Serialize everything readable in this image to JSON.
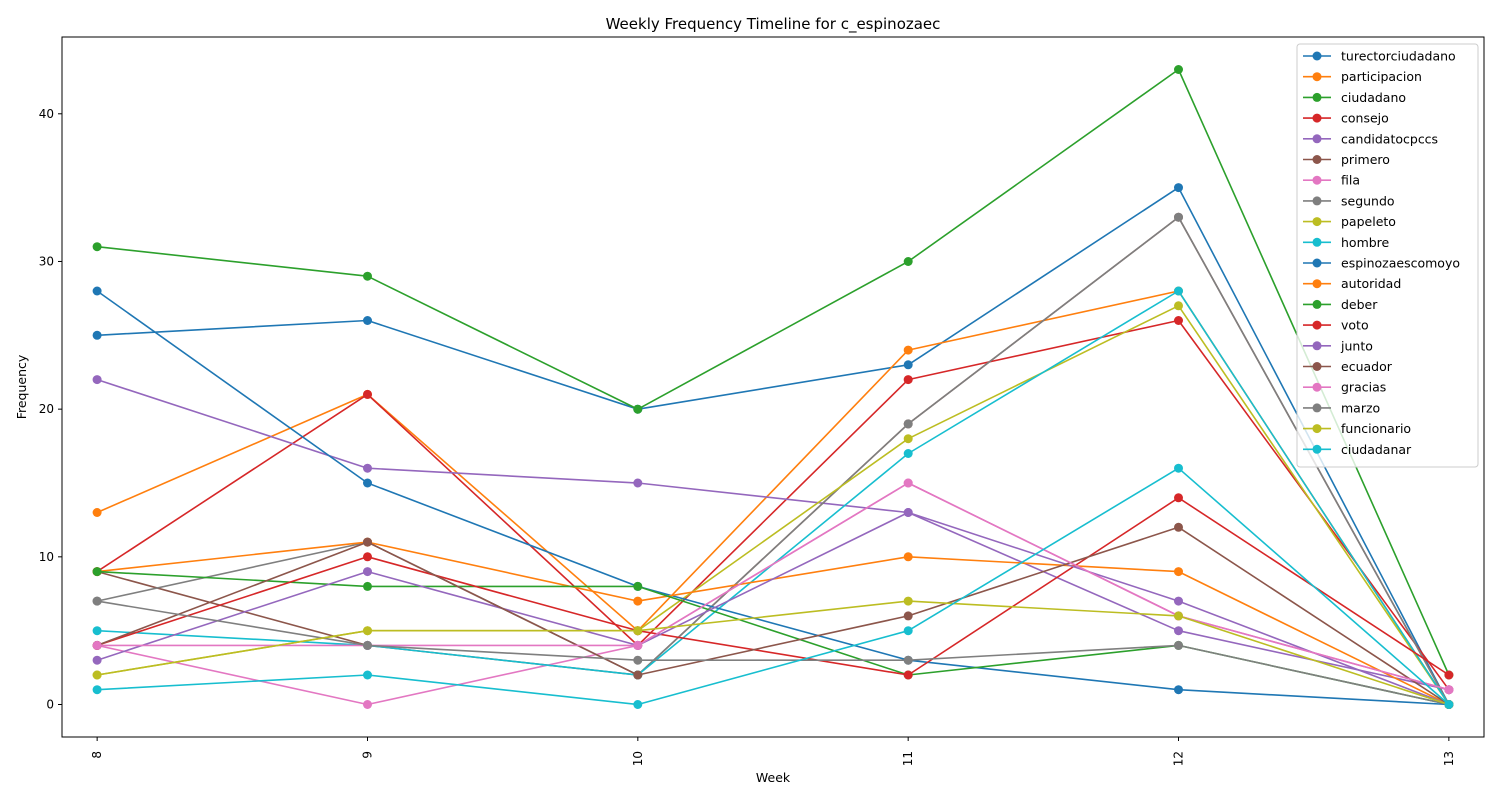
{
  "chart_data": {
    "type": "line",
    "title": "Weekly Frequency Timeline for c_espinozaec",
    "xlabel": "Week",
    "ylabel": "Frequency",
    "x": [
      8,
      9,
      10,
      11,
      12,
      13
    ],
    "xlim": [
      7.87,
      13.13
    ],
    "ylim": [
      -2.2,
      45.2
    ],
    "yticks": [
      0,
      10,
      20,
      30,
      40
    ],
    "grid": false,
    "legend_position": "top-right",
    "series": [
      {
        "name": "turectorciudadano",
        "color": "#1f77b4",
        "values": [
          25,
          26,
          20,
          23,
          35,
          0
        ]
      },
      {
        "name": "participacion",
        "color": "#ff7f0e",
        "values": [
          13,
          21,
          5,
          24,
          28,
          0
        ]
      },
      {
        "name": "ciudadano",
        "color": "#2ca02c",
        "values": [
          31,
          29,
          20,
          30,
          43,
          2
        ]
      },
      {
        "name": "consejo",
        "color": "#d62728",
        "values": [
          9,
          21,
          4,
          22,
          26,
          1
        ]
      },
      {
        "name": "candidatocpccs",
        "color": "#9467bd",
        "values": [
          22,
          16,
          15,
          13,
          5,
          1
        ]
      },
      {
        "name": "primero",
        "color": "#8c564b",
        "values": [
          9,
          4,
          2,
          19,
          33,
          0
        ]
      },
      {
        "name": "fila",
        "color": "#e377c2",
        "values": [
          4,
          0,
          4,
          15,
          6,
          1
        ]
      },
      {
        "name": "segundo",
        "color": "#7f7f7f",
        "values": [
          7,
          11,
          2,
          19,
          33,
          0
        ]
      },
      {
        "name": "papeleto",
        "color": "#bcbd22",
        "values": [
          2,
          5,
          5,
          18,
          27,
          0
        ]
      },
      {
        "name": "hombre",
        "color": "#17becf",
        "values": [
          5,
          4,
          2,
          17,
          28,
          0
        ]
      },
      {
        "name": "espinozaescomoyo",
        "color": "#1f77b4",
        "values": [
          28,
          15,
          8,
          3,
          1,
          0
        ]
      },
      {
        "name": "autoridad",
        "color": "#ff7f0e",
        "values": [
          9,
          11,
          7,
          10,
          9,
          0
        ]
      },
      {
        "name": "deber",
        "color": "#2ca02c",
        "values": [
          9,
          8,
          8,
          2,
          4,
          0
        ]
      },
      {
        "name": "voto",
        "color": "#d62728",
        "values": [
          4,
          10,
          5,
          2,
          14,
          2
        ]
      },
      {
        "name": "junto",
        "color": "#9467bd",
        "values": [
          3,
          9,
          4,
          13,
          7,
          0
        ]
      },
      {
        "name": "ecuador",
        "color": "#8c564b",
        "values": [
          4,
          11,
          2,
          6,
          12,
          0
        ]
      },
      {
        "name": "gracias",
        "color": "#e377c2",
        "values": [
          4,
          4,
          4,
          15,
          6,
          1
        ]
      },
      {
        "name": "marzo",
        "color": "#7f7f7f",
        "values": [
          7,
          4,
          3,
          3,
          4,
          0
        ]
      },
      {
        "name": "funcionario",
        "color": "#bcbd22",
        "values": [
          2,
          5,
          5,
          7,
          6,
          0
        ]
      },
      {
        "name": "ciudadanar",
        "color": "#17becf",
        "values": [
          1,
          2,
          0,
          5,
          16,
          0
        ]
      }
    ]
  }
}
